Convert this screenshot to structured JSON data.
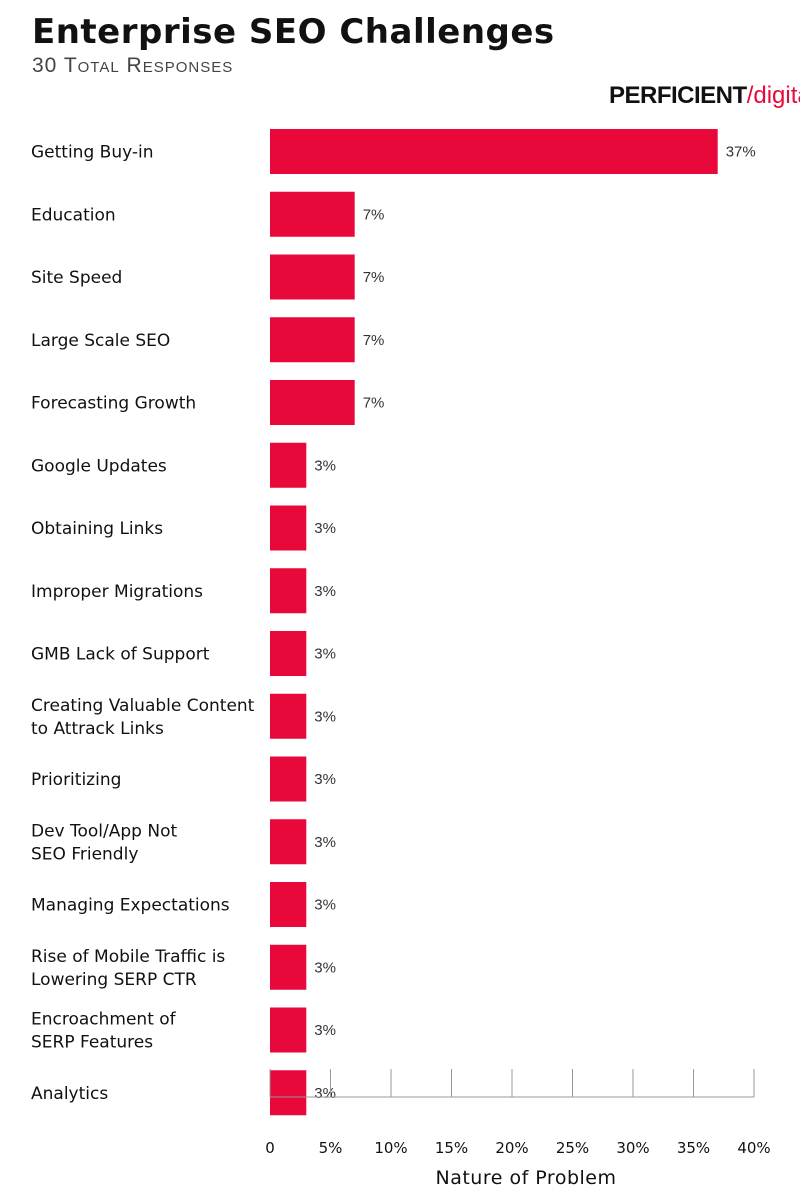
{
  "header": {
    "title": "Enterprise SEO Challenges",
    "subtitle": "30 Total Responses"
  },
  "logo": {
    "main": "PERFICIENT",
    "sub": "digital"
  },
  "colors": {
    "bar": "#e8083a",
    "axis": "#999999"
  },
  "chart_data": {
    "type": "bar",
    "orientation": "horizontal",
    "title": "Enterprise SEO Challenges",
    "subtitle": "30 Total Responses",
    "xlabel": "Nature of Problem",
    "ylabel": "",
    "xlim": [
      0,
      40
    ],
    "x_ticks": [
      "0",
      "5%",
      "10%",
      "15%",
      "20%",
      "25%",
      "30%",
      "35%",
      "40%"
    ],
    "categories": [
      [
        "Getting Buy-in"
      ],
      [
        "Education"
      ],
      [
        "Site Speed"
      ],
      [
        "Large Scale SEO"
      ],
      [
        "Forecasting Growth"
      ],
      [
        "Google Updates"
      ],
      [
        "Obtaining Links"
      ],
      [
        "Improper Migrations"
      ],
      [
        "GMB Lack of Support"
      ],
      [
        "Creating Valuable Content",
        "to Attrack Links"
      ],
      [
        "Prioritizing"
      ],
      [
        "Dev Tool/App Not",
        "SEO Friendly"
      ],
      [
        "Managing Expectations"
      ],
      [
        "Rise of Mobile Traffic is",
        "Lowering SERP CTR"
      ],
      [
        "Encroachment of",
        "SERP Features"
      ],
      [
        "Analytics"
      ]
    ],
    "values": [
      37,
      7,
      7,
      7,
      7,
      3,
      3,
      3,
      3,
      3,
      3,
      3,
      3,
      3,
      3,
      3
    ],
    "value_labels": [
      "37%",
      "7%",
      "7%",
      "7%",
      "7%",
      "3%",
      "3%",
      "3%",
      "3%",
      "3%",
      "3%",
      "3%",
      "3%",
      "3%",
      "3%",
      "3%"
    ],
    "grid": false
  }
}
